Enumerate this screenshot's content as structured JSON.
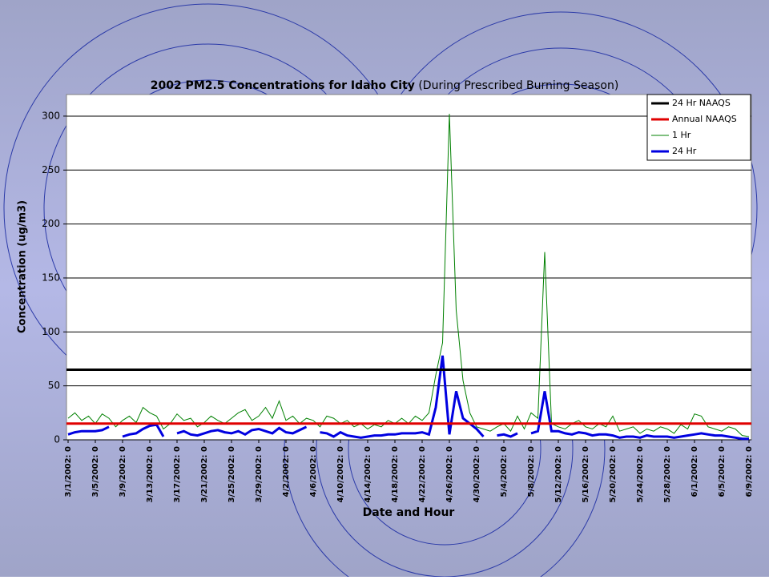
{
  "chart_data": {
    "type": "line",
    "title": "2002 PM2.5 Concentrations for Idaho City",
    "subtitle": "(During Prescribed Burning Season)",
    "x_label": "Date and Hour",
    "y_label": "Concentration (ug/m3)",
    "categories": [
      "3/1/2002: 0",
      null,
      null,
      null,
      "3/5/2002: 0",
      null,
      null,
      null,
      "3/9/2002: 0",
      null,
      null,
      null,
      "3/13/2002: 0",
      null,
      null,
      null,
      "3/17/2002: 0",
      null,
      null,
      null,
      "3/21/2002: 0",
      null,
      null,
      null,
      "3/25/2002: 0",
      null,
      null,
      null,
      "3/29/2002: 0",
      null,
      null,
      null,
      "4/2/2002: 0",
      null,
      null,
      null,
      "4/6/2002: 0",
      null,
      null,
      null,
      "4/10/2002: 0",
      null,
      null,
      null,
      "4/14/2002: 0",
      null,
      null,
      null,
      "4/18/2002: 0",
      null,
      null,
      null,
      "4/22/2002: 0",
      null,
      null,
      null,
      "4/26/2002: 0",
      null,
      null,
      null,
      "4/30/2002: 0",
      null,
      null,
      null,
      "5/4/2002: 0",
      null,
      null,
      null,
      "5/8/2002: 0",
      null,
      null,
      null,
      "5/12/2002: 0",
      null,
      null,
      null,
      "5/16/2002: 0",
      null,
      null,
      null,
      "5/20/2002: 0",
      null,
      null,
      null,
      "5/24/2002: 0",
      null,
      null,
      null,
      "5/28/2002: 0",
      null,
      null,
      null,
      "6/1/2002: 0",
      null,
      null,
      null,
      "6/5/2002: 0",
      null,
      null,
      null,
      "6/9/2002: 0"
    ],
    "reference_lines": [
      {
        "name": "24 Hr NAAQS",
        "color": "#000000",
        "value": 65
      },
      {
        "name": "Annual NAAQS",
        "color": "#e00000",
        "value": 15
      }
    ],
    "series": [
      {
        "name": "1 Hr",
        "color": "#008000",
        "values": [
          20,
          25,
          18,
          22,
          15,
          24,
          20,
          12,
          18,
          22,
          16,
          30,
          25,
          22,
          10,
          15,
          24,
          18,
          20,
          12,
          16,
          22,
          18,
          15,
          20,
          25,
          28,
          18,
          22,
          30,
          20,
          36,
          18,
          22,
          15,
          20,
          18,
          12,
          22,
          20,
          15,
          18,
          12,
          15,
          10,
          14,
          12,
          18,
          15,
          20,
          15,
          22,
          18,
          25,
          60,
          90,
          302,
          120,
          55,
          25,
          12,
          10,
          8,
          12,
          15,
          8,
          22,
          10,
          25,
          20,
          174,
          15,
          12,
          10,
          15,
          18,
          12,
          10,
          15,
          12,
          22,
          8,
          10,
          12,
          6,
          10,
          8,
          12,
          10,
          6,
          14,
          10,
          24,
          22,
          12,
          10,
          8,
          12,
          10,
          4,
          3
        ]
      },
      {
        "name": "24 Hr",
        "color": "#0000e0",
        "values": [
          5,
          7,
          8,
          8,
          8,
          9,
          12,
          null,
          3,
          5,
          6,
          10,
          13,
          14,
          3,
          null,
          6,
          8,
          5,
          4,
          6,
          8,
          9,
          7,
          6,
          8,
          5,
          9,
          10,
          8,
          6,
          11,
          7,
          6,
          9,
          12,
          null,
          7,
          6,
          3,
          7,
          4,
          3,
          2,
          3,
          4,
          4,
          5,
          5,
          6,
          6,
          6,
          7,
          5,
          30,
          78,
          5,
          45,
          20,
          15,
          10,
          3,
          null,
          4,
          5,
          3,
          6,
          null,
          6,
          8,
          45,
          8,
          8,
          6,
          5,
          7,
          6,
          4,
          5,
          5,
          4,
          2,
          3,
          3,
          2,
          4,
          3,
          3,
          3,
          2,
          3,
          4,
          5,
          6,
          5,
          4,
          4,
          3,
          2,
          1,
          1
        ]
      }
    ],
    "ylim": [
      0,
      320
    ],
    "yticks": [
      0,
      50,
      100,
      150,
      200,
      250,
      300
    ],
    "grid": true
  }
}
